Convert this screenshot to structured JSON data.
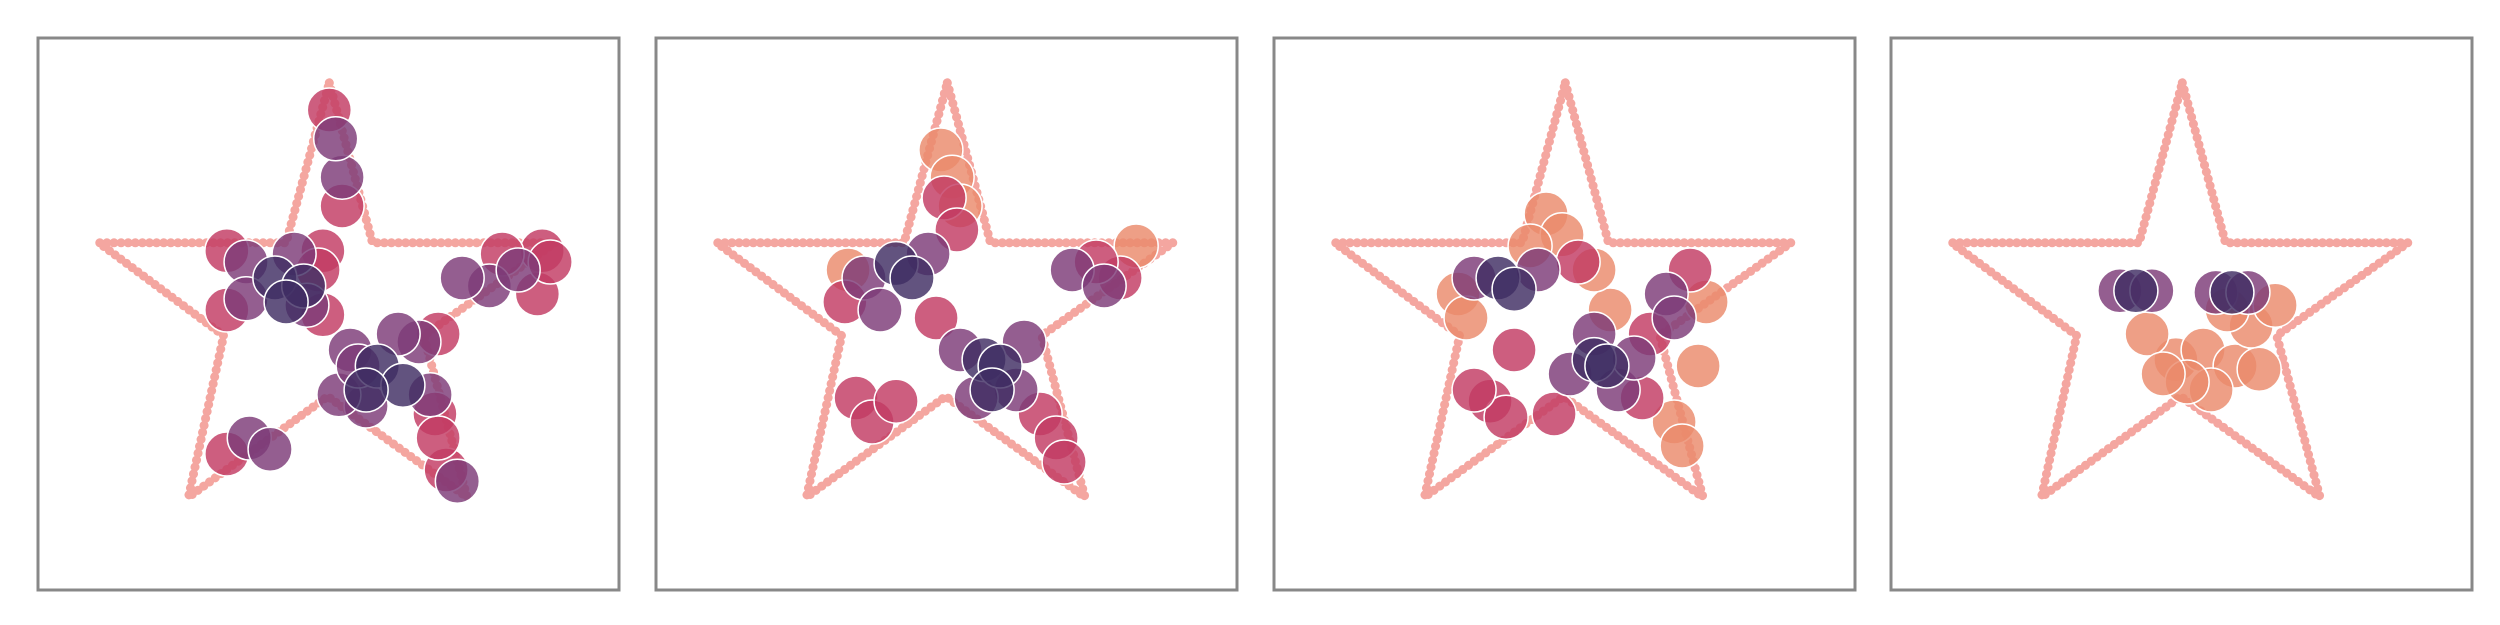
{
  "chart_data": [
    {
      "type": "scatter",
      "xlim": [
        0,
        363
      ],
      "ylim": [
        0,
        345
      ],
      "outline": {
        "color": "#f4a6a0",
        "x": [
          182,
          209,
          323,
          241,
          268,
          181,
          94,
          116,
          38,
          155,
          182
        ],
        "y": [
          317,
          217,
          217,
          159,
          58,
          121,
          58,
          159,
          217,
          217,
          317
        ]
      },
      "series": [
        {
          "color": "#c23b63",
          "x": [
            118,
            118,
            178,
            178,
            248,
            250,
            182,
            312,
            315,
            118,
            255,
            250,
            190,
            175,
            320,
            290
          ],
          "y": [
            212,
            175,
            212,
            172,
            110,
            160,
            300,
            185,
            212,
            85,
            75,
            95,
            240,
            200,
            205,
            210
          ]
        },
        {
          "color": "#7d3a78",
          "x": [
            130,
            130,
            160,
            168,
            195,
            238,
            245,
            205,
            188,
            282,
            300,
            265,
            190,
            186,
            132,
            145,
            262,
            200,
            225
          ],
          "y": [
            205,
            182,
            210,
            178,
            150,
            155,
            122,
            115,
            122,
            190,
            200,
            195,
            258,
            282,
            95,
            88,
            68,
            140,
            160
          ]
        },
        {
          "color": "#3f2d63",
          "x": [
            148,
            166,
            212,
            228,
            205,
            155
          ],
          "y": [
            195,
            190,
            140,
            128,
            125,
            180
          ]
        }
      ]
    },
    {
      "type": "scatter",
      "xlim": [
        0,
        363
      ],
      "ylim": [
        0,
        345
      ],
      "outline": {
        "color": "#f4a6a0",
        "x": [
          182,
          209,
          323,
          241,
          268,
          181,
          94,
          116,
          38,
          155,
          182
        ],
        "y": [
          317,
          217,
          217,
          159,
          58,
          121,
          58,
          159,
          217,
          217,
          317
        ]
      },
      "series": [
        {
          "color": "#ea8a6b",
          "x": [
            178,
            185,
            190,
            300,
            120
          ],
          "y": [
            275,
            258,
            240,
            215,
            200
          ]
        },
        {
          "color": "#c23b63",
          "x": [
            180,
            188,
            125,
            135,
            150,
            240,
            250,
            255,
            118,
            175,
            290,
            275
          ],
          "y": [
            245,
            225,
            120,
            105,
            118,
            110,
            95,
            80,
            180,
            170,
            195,
            205
          ]
        },
        {
          "color": "#7d3a78",
          "x": [
            130,
            170,
            140,
            190,
            230,
            225,
            260,
            280,
            200
          ],
          "y": [
            195,
            210,
            175,
            150,
            155,
            125,
            200,
            190,
            120
          ]
        },
        {
          "color": "#3f2d63",
          "x": [
            150,
            160,
            205,
            215,
            210
          ],
          "y": [
            204,
            195,
            144,
            140,
            125
          ]
        }
      ]
    },
    {
      "type": "scatter",
      "xlim": [
        0,
        363
      ],
      "ylim": [
        0,
        345
      ],
      "outline": {
        "color": "#f4a6a0",
        "x": [
          182,
          209,
          323,
          241,
          268,
          181,
          94,
          116,
          38,
          155,
          182
        ],
        "y": [
          317,
          217,
          217,
          159,
          58,
          121,
          58,
          159,
          217,
          217,
          317
        ]
      },
      "series": [
        {
          "color": "#ea8a6b",
          "x": [
            170,
            180,
            160,
            250,
            255,
            265,
            270,
            115,
            120,
            210,
            200
          ],
          "y": [
            235,
            222,
            215,
            105,
            90,
            140,
            180,
            185,
            170,
            175,
            200
          ]
        },
        {
          "color": "#c23b63",
          "x": [
            135,
            145,
            125,
            230,
            235,
            190,
            175,
            260,
            150
          ],
          "y": [
            118,
            108,
            125,
            120,
            160,
            205,
            110,
            200,
            150
          ]
        },
        {
          "color": "#7d3a78",
          "x": [
            125,
            165,
            200,
            215,
            245,
            250,
            185,
            225
          ],
          "y": [
            195,
            200,
            160,
            125,
            185,
            170,
            135,
            145
          ]
        },
        {
          "color": "#3f2d63",
          "x": [
            140,
            150,
            200,
            208
          ],
          "y": [
            195,
            188,
            144,
            140
          ]
        }
      ]
    },
    {
      "type": "scatter",
      "xlim": [
        0,
        363
      ],
      "ylim": [
        0,
        345
      ],
      "outline": {
        "color": "#f4a6a0",
        "x": [
          182,
          209,
          323,
          241,
          268,
          181,
          94,
          116,
          38,
          155,
          182
        ],
        "y": [
          317,
          217,
          217,
          159,
          58,
          121,
          58,
          159,
          217,
          217,
          317
        ]
      },
      "series": [
        {
          "color": "#ea8a6b",
          "x": [
            178,
            195,
            215,
            230,
            200,
            185,
            160,
            225,
            240,
            170,
            210
          ],
          "y": [
            144,
            150,
            140,
            138,
            125,
            130,
            160,
            165,
            178,
            135,
            175
          ]
        },
        {
          "color": "#7d3a78",
          "x": [
            143,
            163,
            203,
            223
          ],
          "y": [
            187,
            187,
            186,
            186
          ]
        },
        {
          "color": "#3f2d63",
          "x": [
            153,
            213
          ],
          "y": [
            187,
            186
          ]
        }
      ]
    }
  ]
}
